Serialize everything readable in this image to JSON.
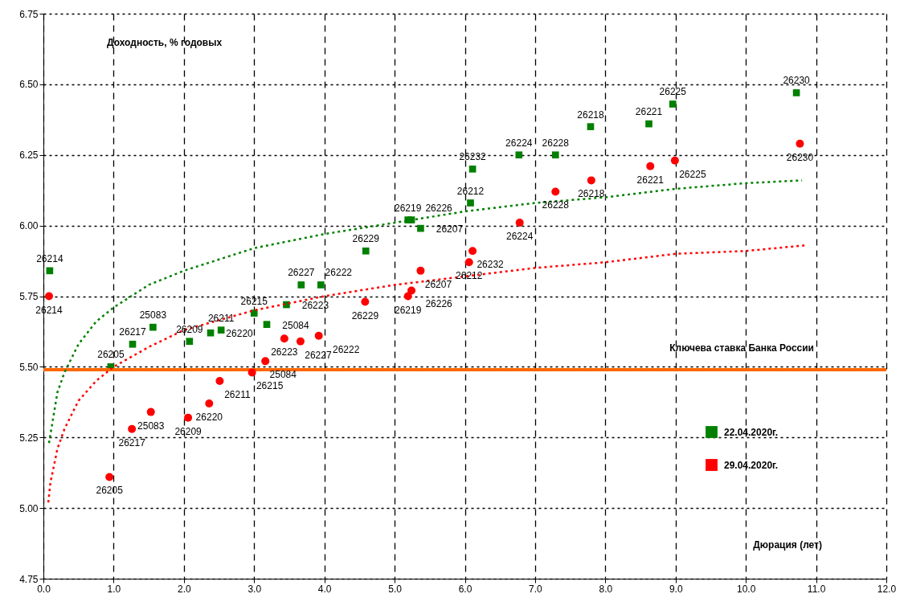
{
  "chart_data": {
    "type": "scatter",
    "xlabel": "Дюрация (лет)",
    "ylabel": "Доходность, % годовых",
    "xlim": [
      0,
      12
    ],
    "ylim": [
      4.75,
      6.75
    ],
    "xticks": [
      {
        "value": 0,
        "label": "0.0"
      },
      {
        "value": 1,
        "label": "1.0"
      },
      {
        "value": 2,
        "label": "2.0"
      },
      {
        "value": 3,
        "label": "3.0"
      },
      {
        "value": 4,
        "label": "4.0"
      },
      {
        "value": 5,
        "label": "5.0"
      },
      {
        "value": 6,
        "label": "6.0"
      },
      {
        "value": 7,
        "label": "7.0"
      },
      {
        "value": 8,
        "label": "8.0"
      },
      {
        "value": 9,
        "label": "9.0"
      },
      {
        "value": 10,
        "label": "10.0"
      },
      {
        "value": 11,
        "label": "11.0"
      },
      {
        "value": 12,
        "label": "12.0"
      }
    ],
    "yticks": [
      4.75,
      {
        "value": 5,
        "label": "5.00"
      },
      5.25,
      {
        "value": 5.5,
        "label": "5.50"
      },
      5.75,
      {
        "value": 6,
        "label": "6.00"
      },
      6.25,
      {
        "value": 6.5,
        "label": "6.50"
      },
      6.75
    ],
    "grid": true,
    "legend": "bottom right",
    "series": [
      {
        "name": "22.04.2020г.",
        "type": "scatter",
        "marker": "square",
        "color": "#008000",
        "x": [
          0.09,
          0.96,
          1.27,
          1.56,
          2.08,
          2.38,
          2.53,
          3.0,
          3.18,
          3.46,
          3.67,
          3.95,
          4.59,
          5.19,
          5.24,
          5.37,
          6.08,
          6.11,
          6.77,
          7.29,
          7.79,
          8.62,
          8.96,
          10.72
        ],
        "values": [
          5.84,
          5.5,
          5.58,
          5.64,
          5.59,
          5.62,
          5.63,
          5.69,
          5.65,
          5.72,
          5.79,
          5.79,
          5.91,
          6.02,
          6.02,
          5.99,
          6.08,
          6.2,
          6.25,
          6.25,
          6.35,
          6.36,
          6.43,
          6.47
        ]
      },
      {
        "name": "29.04.2020г.",
        "type": "scatter",
        "marker": "circle",
        "color": "#ff0000",
        "x": [
          0.08,
          0.94,
          1.26,
          1.53,
          2.06,
          2.36,
          2.51,
          2.97,
          3.16,
          3.43,
          3.66,
          3.92,
          4.58,
          5.19,
          5.24,
          5.37,
          6.06,
          6.11,
          6.78,
          7.29,
          7.8,
          8.64,
          8.99,
          10.77
        ],
        "values": [
          5.75,
          5.11,
          5.28,
          5.34,
          5.32,
          5.37,
          5.45,
          5.48,
          5.52,
          5.6,
          5.59,
          5.61,
          5.73,
          5.75,
          5.77,
          5.84,
          5.87,
          5.91,
          6.01,
          6.12,
          6.16,
          6.21,
          6.23,
          6.29
        ]
      },
      {
        "type": "line",
        "line_style": "dotted",
        "color": "#008000",
        "x": [
          0.08,
          0.2,
          0.3,
          0.5,
          0.75,
          1,
          1.5,
          2,
          3,
          4,
          5,
          6,
          7,
          8,
          9,
          10,
          10.8
        ],
        "values": [
          5.23,
          5.41,
          5.48,
          5.58,
          5.66,
          5.71,
          5.79,
          5.84,
          5.92,
          5.97,
          6.01,
          6.05,
          6.08,
          6.1,
          6.13,
          6.15,
          6.16
        ]
      },
      {
        "type": "line",
        "line_style": "dotted",
        "color": "#ff0000",
        "x": [
          0.07,
          0.1,
          0.2,
          0.3,
          0.5,
          0.75,
          1,
          1.5,
          2,
          3,
          4,
          5,
          6,
          7,
          8,
          9,
          10,
          10.85
        ],
        "values": [
          5.02,
          5.09,
          5.21,
          5.28,
          5.38,
          5.45,
          5.5,
          5.57,
          5.63,
          5.7,
          5.75,
          5.79,
          5.82,
          5.85,
          5.87,
          5.9,
          5.91,
          5.93
        ]
      }
    ],
    "ref_lines": [
      {
        "axis": "y",
        "value": 5.49,
        "label": "Ключева ставка Банка России",
        "color": "#ff6600"
      }
    ],
    "annotations": [
      {
        "text": "26214",
        "x": 0.09,
        "y": 5.84
      },
      {
        "text": "26205",
        "x": 0.96,
        "y": 5.5
      },
      {
        "text": "26217",
        "x": 1.27,
        "y": 5.58
      },
      {
        "text": "25083",
        "x": 1.56,
        "y": 5.64
      },
      {
        "text": "26209",
        "x": 2.08,
        "y": 5.59
      },
      {
        "text": "26220",
        "x": 2.38,
        "y": 5.62
      },
      {
        "text": "26211",
        "x": 2.53,
        "y": 5.63
      },
      {
        "text": "26215",
        "x": 3.0,
        "y": 5.69
      },
      {
        "text": "25084",
        "x": 3.18,
        "y": 5.65
      },
      {
        "text": "26223",
        "x": 3.46,
        "y": 5.72
      },
      {
        "text": "26227",
        "x": 3.67,
        "y": 5.79
      },
      {
        "text": "26222",
        "x": 3.95,
        "y": 5.79
      },
      {
        "text": "26229",
        "x": 4.59,
        "y": 5.91
      },
      {
        "text": "26219",
        "x": 5.19,
        "y": 6.02
      },
      {
        "text": "26226",
        "x": 5.24,
        "y": 6.02
      },
      {
        "text": "26207",
        "x": 5.37,
        "y": 5.99
      },
      {
        "text": "26212",
        "x": 6.08,
        "y": 6.08
      },
      {
        "text": "26232",
        "x": 6.11,
        "y": 6.2
      },
      {
        "text": "26224",
        "x": 6.77,
        "y": 6.25
      },
      {
        "text": "26228",
        "x": 7.29,
        "y": 6.25
      },
      {
        "text": "26218",
        "x": 7.79,
        "y": 6.35
      },
      {
        "text": "26221",
        "x": 8.62,
        "y": 6.36
      },
      {
        "text": "26225",
        "x": 8.96,
        "y": 6.43
      },
      {
        "text": "26230",
        "x": 10.72,
        "y": 6.47
      },
      {
        "text": "26214",
        "x": 0.08,
        "y": 5.75
      },
      {
        "text": "26205",
        "x": 0.94,
        "y": 5.11
      },
      {
        "text": "26217",
        "x": 1.26,
        "y": 5.28
      },
      {
        "text": "25083",
        "x": 1.53,
        "y": 5.34
      },
      {
        "text": "26209",
        "x": 2.06,
        "y": 5.32
      },
      {
        "text": "26220",
        "x": 2.36,
        "y": 5.37
      },
      {
        "text": "26211",
        "x": 2.51,
        "y": 5.45
      },
      {
        "text": "26215",
        "x": 2.97,
        "y": 5.48
      },
      {
        "text": "25084",
        "x": 3.16,
        "y": 5.52
      },
      {
        "text": "26223",
        "x": 3.43,
        "y": 5.6
      },
      {
        "text": "26227",
        "x": 3.66,
        "y": 5.59
      },
      {
        "text": "26222",
        "x": 3.92,
        "y": 5.61
      },
      {
        "text": "26229",
        "x": 4.58,
        "y": 5.73
      },
      {
        "text": "26219",
        "x": 5.19,
        "y": 5.75
      },
      {
        "text": "26226",
        "x": 5.24,
        "y": 5.77
      },
      {
        "text": "26207",
        "x": 5.37,
        "y": 5.84
      },
      {
        "text": "26212",
        "x": 6.06,
        "y": 5.87
      },
      {
        "text": "26232",
        "x": 6.11,
        "y": 5.91
      },
      {
        "text": "26224",
        "x": 6.78,
        "y": 6.01
      },
      {
        "text": "26228",
        "x": 7.29,
        "y": 6.12
      },
      {
        "text": "26218",
        "x": 7.8,
        "y": 6.16
      },
      {
        "text": "26221",
        "x": 8.64,
        "y": 6.21
      },
      {
        "text": "26225",
        "x": 8.99,
        "y": 6.23
      },
      {
        "text": "26230",
        "x": 10.77,
        "y": 6.29
      }
    ]
  }
}
